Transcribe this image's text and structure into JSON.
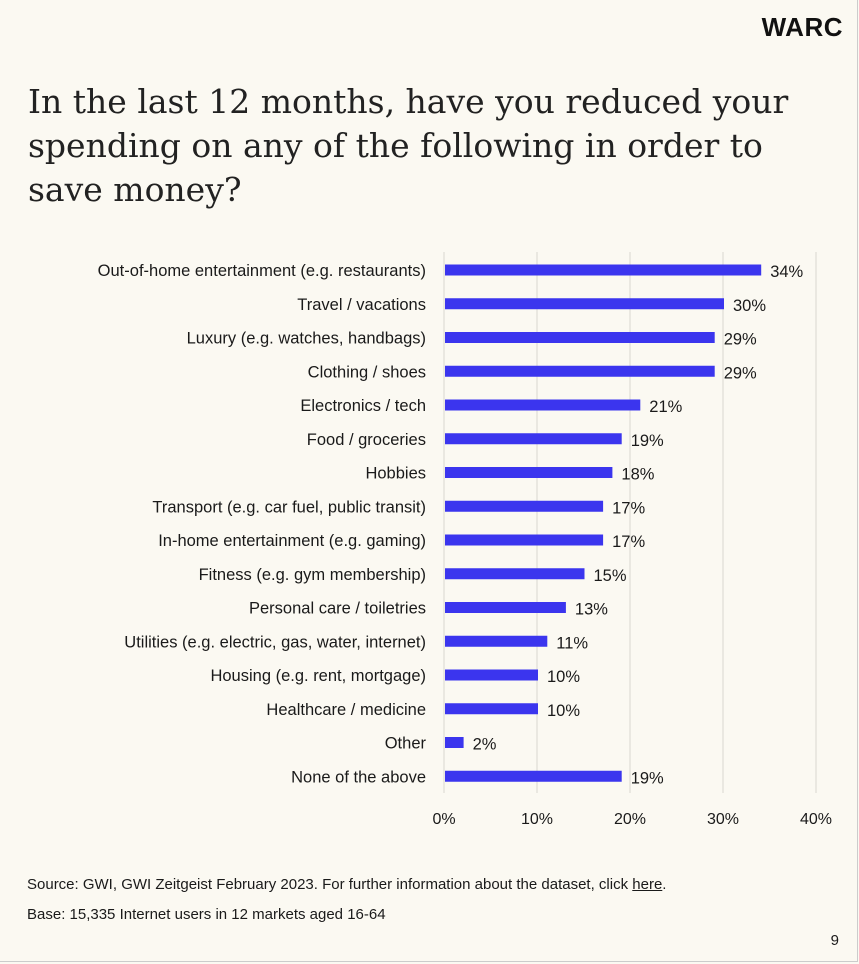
{
  "brand": "WARC",
  "title": "In the last 12 months, have you reduced your spending on any of the following in order to save money?",
  "footer": {
    "source_prefix": "Source: GWI, GWI Zeitgeist February 2023. For further information about the dataset, click ",
    "source_link": "here",
    "source_suffix": ".",
    "base": "Base: 15,335 Internet users in 12 markets aged 16-64",
    "page_number": "9"
  },
  "colors": {
    "bar": "#3b35ee",
    "grid": "#d9d7d0",
    "background": "#fbf9f2"
  },
  "chart_data": {
    "type": "bar",
    "orientation": "horizontal",
    "categories": [
      "Out-of-home entertainment (e.g. restaurants)",
      "Travel / vacations",
      "Luxury (e.g. watches, handbags)",
      "Clothing / shoes",
      "Electronics / tech",
      "Food / groceries",
      "Hobbies",
      "Transport (e.g. car fuel, public transit)",
      "In-home entertainment (e.g. gaming)",
      "Fitness (e.g. gym membership)",
      "Personal care / toiletries",
      "Utilities (e.g. electric, gas, water, internet)",
      "Housing (e.g. rent, mortgage)",
      "Healthcare / medicine",
      "Other",
      "None of the above"
    ],
    "values": [
      34,
      30,
      29,
      29,
      21,
      19,
      18,
      17,
      17,
      15,
      13,
      11,
      10,
      10,
      2,
      19
    ],
    "value_labels": [
      "34%",
      "30%",
      "29%",
      "29%",
      "21%",
      "19%",
      "18%",
      "17%",
      "17%",
      "15%",
      "13%",
      "11%",
      "10%",
      "10%",
      "2%",
      "19%"
    ],
    "xlim": [
      0,
      40
    ],
    "xticks": [
      0,
      10,
      20,
      30,
      40
    ],
    "xtick_labels": [
      "0%",
      "10%",
      "20%",
      "30%",
      "40%"
    ],
    "grid": true,
    "xlabel": "",
    "ylabel": ""
  }
}
